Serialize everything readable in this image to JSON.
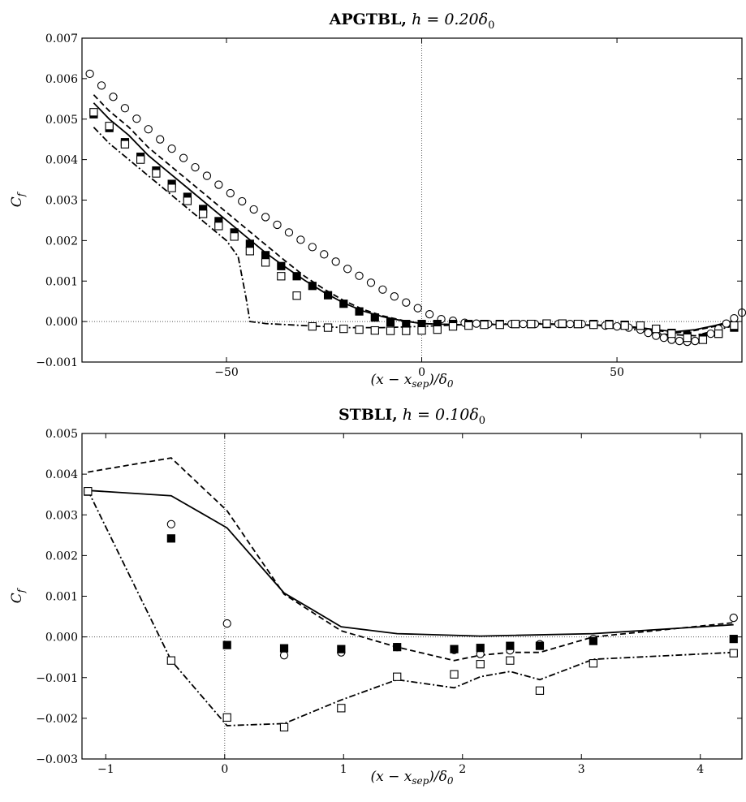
{
  "chart_data": [
    {
      "type": "scatter",
      "title_bold": "APGTBL,",
      "title_math": " h = 0.20δ",
      "title_sub": "0",
      "xlabel": "(x − x",
      "xlabel_sub": "sep",
      "xlabel_tail": ")/δ",
      "xlabel_sub2": "0",
      "ylabel": "C",
      "ylabel_sub": "f",
      "xlim": [
        -87,
        82
      ],
      "ylim": [
        -0.001,
        0.007
      ],
      "xticks": [
        -50,
        0,
        50
      ],
      "xtick_labels": [
        "−50",
        "0",
        "50"
      ],
      "yticks": [
        -0.001,
        0.0,
        0.001,
        0.002,
        0.003,
        0.004,
        0.005,
        0.006,
        0.007
      ],
      "ytick_labels": [
        "−0.001",
        "0.000",
        "0.001",
        "0.002",
        "0.003",
        "0.004",
        "0.005",
        "0.006",
        "0.007"
      ],
      "reference_lines": {
        "x": 0,
        "y": 0
      },
      "series": [
        {
          "style": "solid-line",
          "x": [
            -84,
            -80,
            -75,
            -70,
            -65,
            -60,
            -55,
            -50,
            -45,
            -40,
            -35,
            -30,
            -25,
            -20,
            -15,
            -10,
            -5,
            0,
            10,
            20,
            30,
            40,
            50,
            55,
            60,
            65,
            70,
            75,
            80
          ],
          "y": [
            0.0054,
            0.005,
            0.0046,
            0.0041,
            0.0037,
            0.0033,
            0.0029,
            0.0025,
            0.0021,
            0.0017,
            0.00135,
            0.00102,
            0.00072,
            0.00046,
            0.00026,
            0.00012,
            2e-05,
            -5e-05,
            -8e-05,
            -7e-05,
            -6e-05,
            -8e-05,
            -0.0001,
            -0.00014,
            -0.0002,
            -0.00025,
            -0.0002,
            -0.0001,
            2e-05
          ]
        },
        {
          "style": "dashed-line",
          "x": [
            -84,
            -80,
            -75,
            -70,
            -65,
            -60,
            -55,
            -50,
            -45,
            -40,
            -35,
            -30,
            -25,
            -20,
            -15,
            -10,
            -5,
            0,
            10,
            20,
            30,
            40,
            50,
            55,
            60,
            65,
            70,
            75,
            80
          ],
          "y": [
            0.0056,
            0.0052,
            0.0048,
            0.0043,
            0.0039,
            0.0035,
            0.0031,
            0.0027,
            0.0023,
            0.0019,
            0.0015,
            0.00112,
            0.0008,
            0.00052,
            0.0003,
            0.00014,
            3e-05,
            -5e-05,
            -8e-05,
            -7e-05,
            -6e-05,
            -8e-05,
            -0.0001,
            -0.00016,
            -0.00022,
            -0.00028,
            -0.00022,
            -0.00012,
            0.0
          ]
        },
        {
          "style": "dashdot-line",
          "x": [
            -84,
            -80,
            -75,
            -70,
            -65,
            -60,
            -55,
            -50,
            -47,
            -45,
            -44,
            -40,
            -30,
            -20,
            -10,
            0,
            10,
            20,
            30,
            40,
            50,
            60,
            70,
            80
          ],
          "y": [
            0.0048,
            0.0044,
            0.004,
            0.0036,
            0.0032,
            0.0028,
            0.0024,
            0.002,
            0.0016,
            0.0006,
            0.0,
            -5e-05,
            -0.0001,
            -0.00015,
            -0.00015,
            -0.00012,
            -8e-05,
            -6e-05,
            -5e-05,
            -8e-05,
            -0.00012,
            -0.0003,
            -0.00035,
            -0.0001
          ]
        },
        {
          "style": "open-circle",
          "x": [
            -85,
            -82,
            -79,
            -76,
            -73,
            -70,
            -67,
            -64,
            -61,
            -58,
            -55,
            -52,
            -49,
            -46,
            -43,
            -40,
            -37,
            -34,
            -31,
            -28,
            -25,
            -22,
            -19,
            -16,
            -13,
            -10,
            -7,
            -4,
            -1,
            2,
            5,
            8,
            11,
            14,
            17,
            20,
            23,
            26,
            29,
            32,
            35,
            38,
            41,
            44,
            47,
            50,
            53,
            56,
            58,
            60,
            62,
            64,
            66,
            68,
            70,
            72,
            74,
            76,
            78,
            80,
            82
          ],
          "y": [
            0.00612,
            0.00583,
            0.00555,
            0.00527,
            0.00501,
            0.00475,
            0.0045,
            0.00427,
            0.00404,
            0.00381,
            0.0036,
            0.00338,
            0.00317,
            0.00297,
            0.00277,
            0.00258,
            0.00239,
            0.0022,
            0.00202,
            0.00184,
            0.00166,
            0.00148,
            0.0013,
            0.00113,
            0.00096,
            0.00079,
            0.00062,
            0.00047,
            0.00033,
            0.00018,
            6e-05,
            2e-05,
            -3e-05,
            -5e-05,
            -6e-05,
            -6e-05,
            -6e-05,
            -6e-05,
            -6e-05,
            -6e-05,
            -6e-05,
            -6e-05,
            -6e-05,
            -8e-05,
            -0.0001,
            -0.00012,
            -0.00015,
            -0.0002,
            -0.00028,
            -0.00035,
            -0.0004,
            -0.00045,
            -0.00048,
            -0.0005,
            -0.00048,
            -0.0004,
            -0.0003,
            -0.00018,
            -5e-05,
            8e-05,
            0.00022
          ]
        },
        {
          "style": "filled-square",
          "x": [
            -84,
            -80,
            -76,
            -72,
            -68,
            -64,
            -60,
            -56,
            -52,
            -48,
            -44,
            -40,
            -36,
            -32,
            -28,
            -24,
            -20,
            -16,
            -12,
            -8,
            -4,
            0,
            4,
            8,
            12,
            16,
            20,
            24,
            28,
            32,
            36,
            40,
            44,
            48,
            52,
            56,
            60,
            64,
            68,
            72,
            76,
            80
          ],
          "y": [
            0.00512,
            0.00478,
            0.00443,
            0.00407,
            0.00373,
            0.0034,
            0.00308,
            0.00278,
            0.00248,
            0.0022,
            0.00192,
            0.00164,
            0.00137,
            0.00112,
            0.00088,
            0.00065,
            0.00044,
            0.00025,
            0.0001,
            -2e-05,
            -6e-05,
            -6e-05,
            -6e-05,
            -6e-05,
            -6e-05,
            -6e-05,
            -6e-05,
            -6e-05,
            -6e-05,
            -6e-05,
            -6e-05,
            -6e-05,
            -6e-05,
            -6e-05,
            -8e-05,
            -0.0001,
            -0.00018,
            -0.00028,
            -0.00035,
            -0.0004,
            -0.0003,
            -0.00015
          ]
        },
        {
          "style": "open-square",
          "x": [
            -84,
            -80,
            -76,
            -72,
            -68,
            -64,
            -60,
            -56,
            -52,
            -48,
            -44,
            -40,
            -36,
            -32,
            -28,
            -24,
            -20,
            -16,
            -12,
            -8,
            -4,
            0,
            4,
            8,
            12,
            16,
            20,
            24,
            28,
            32,
            36,
            40,
            44,
            48,
            52,
            56,
            60,
            64,
            68,
            72,
            76,
            80
          ],
          "y": [
            0.00517,
            0.00483,
            0.00438,
            0.004,
            0.00366,
            0.0033,
            0.00298,
            0.00266,
            0.00236,
            0.0021,
            0.00174,
            0.00146,
            0.00112,
            0.00064,
            -0.00012,
            -0.00015,
            -0.00018,
            -0.0002,
            -0.00022,
            -0.00023,
            -0.00023,
            -0.00022,
            -0.0002,
            -0.00012,
            -0.0001,
            -8e-05,
            -8e-05,
            -6e-05,
            -6e-05,
            -5e-05,
            -5e-05,
            -6e-05,
            -8e-05,
            -8e-05,
            -0.0001,
            -0.0001,
            -0.00018,
            -0.0003,
            -0.0004,
            -0.00045,
            -0.0003,
            -0.0001
          ]
        }
      ]
    },
    {
      "type": "scatter",
      "title_bold": "STBLI,",
      "title_math": " h = 0.10δ",
      "title_sub": "0",
      "xlabel": "(x − x",
      "xlabel_sub": "sep",
      "xlabel_tail": ")/δ",
      "xlabel_sub2": "0",
      "ylabel": "C",
      "ylabel_sub": "f",
      "xlim": [
        -1.2,
        4.35
      ],
      "ylim": [
        -0.003,
        0.005
      ],
      "xticks": [
        -1,
        0,
        1,
        2,
        3,
        4
      ],
      "xtick_labels": [
        "−1",
        "0",
        "1",
        "2",
        "3",
        "4"
      ],
      "yticks": [
        -0.003,
        -0.002,
        -0.001,
        0.0,
        0.001,
        0.002,
        0.003,
        0.004,
        0.005
      ],
      "ytick_labels": [
        "−0.003",
        "−0.002",
        "−0.001",
        "0.000",
        "0.001",
        "0.002",
        "0.003",
        "0.004",
        "0.005"
      ],
      "reference_lines": {
        "x": 0,
        "y": 0
      },
      "series": [
        {
          "style": "solid-line",
          "x": [
            -1.15,
            -0.45,
            0.02,
            0.5,
            0.98,
            1.45,
            2.15,
            3.1,
            4.28
          ],
          "y": [
            0.0036,
            0.00347,
            0.00268,
            0.00108,
            0.00025,
            8e-05,
            2e-05,
            8e-05,
            0.0003
          ]
        },
        {
          "style": "dashed-line",
          "x": [
            -1.15,
            -0.45,
            0.02,
            0.5,
            0.98,
            1.45,
            1.93,
            2.15,
            2.4,
            2.65,
            3.1,
            4.28
          ],
          "y": [
            0.00405,
            0.0044,
            0.0031,
            0.00105,
            0.00015,
            -0.00025,
            -0.00058,
            -0.00045,
            -0.00038,
            -0.00038,
            0.0,
            0.00035
          ]
        },
        {
          "style": "dashdot-line",
          "x": [
            -1.15,
            -0.45,
            0.02,
            0.5,
            0.98,
            1.45,
            1.93,
            2.15,
            2.4,
            2.65,
            3.1,
            4.28
          ],
          "y": [
            0.0036,
            -0.00058,
            -0.00218,
            -0.00213,
            -0.00155,
            -0.00105,
            -0.00125,
            -0.00098,
            -0.00085,
            -0.00105,
            -0.00055,
            -0.00038
          ]
        },
        {
          "style": "open-circle",
          "x": [
            -1.15,
            -0.45,
            0.02,
            0.5,
            0.98,
            1.45,
            1.93,
            2.15,
            2.4,
            2.65,
            3.1,
            4.28
          ],
          "y": [
            0.00358,
            0.00277,
            0.00033,
            -0.00045,
            -0.00038,
            -0.00025,
            -0.00032,
            -0.00042,
            -0.00033,
            -0.00018,
            -5e-05,
            0.00047
          ]
        },
        {
          "style": "filled-square",
          "x": [
            -1.15,
            -0.45,
            0.02,
            0.5,
            0.98,
            1.45,
            1.93,
            2.15,
            2.4,
            2.65,
            3.1,
            4.28
          ],
          "y": [
            0.00357,
            0.00242,
            -0.0002,
            -0.00028,
            -0.0003,
            -0.00025,
            -0.0003,
            -0.00027,
            -0.00022,
            -0.00022,
            -0.0001,
            -5e-05
          ]
        },
        {
          "style": "open-square",
          "x": [
            -1.15,
            -0.45,
            0.02,
            0.5,
            0.98,
            1.45,
            1.93,
            2.15,
            2.4,
            2.65,
            3.1,
            4.28
          ],
          "y": [
            0.00358,
            -0.00058,
            -0.00198,
            -0.00222,
            -0.00175,
            -0.00098,
            -0.00092,
            -0.00067,
            -0.00058,
            -0.00132,
            -0.00065,
            -0.0004
          ]
        }
      ]
    }
  ]
}
